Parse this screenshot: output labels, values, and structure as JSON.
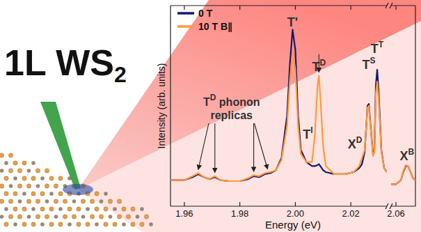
{
  "graphic": {
    "title": "1L WS",
    "title_subscript": "2"
  },
  "chart_data": [
    {
      "type": "line",
      "x_label": "Energy (eV)",
      "y_label": "Intensity (arb. units)",
      "xlim": [
        1.955,
        2.033
      ],
      "ylim": [
        0,
        1
      ],
      "xticks": [
        1.96,
        1.98,
        {
          "value": 2,
          "label": "2.00"
        },
        2.02
      ],
      "tick_labels": "x",
      "legend": "upper left",
      "x": [
        1.955,
        1.96,
        1.963,
        1.965,
        1.967,
        1.969,
        1.971,
        1.973,
        1.976,
        1.98,
        1.983,
        1.985,
        1.987,
        1.989,
        1.991,
        1.993,
        1.995,
        1.997,
        1.998,
        1.999,
        2,
        2.001,
        2.002,
        2.004,
        2.006,
        2.007,
        2.008,
        2.0085,
        2.009,
        2.01,
        2.011,
        2.014,
        2.018,
        2.021,
        2.023,
        2.024,
        2.025,
        2.026,
        2.0265,
        2.027,
        2.028,
        2.0285,
        2.029,
        2.0295,
        2.03,
        2.031,
        2.032,
        2.033
      ],
      "series": [
        {
          "name": "0 T",
          "color": "#15186e",
          "values": [
            0.13,
            0.13,
            0.145,
            0.16,
            0.145,
            0.135,
            0.145,
            0.13,
            0.125,
            0.125,
            0.135,
            0.15,
            0.145,
            0.16,
            0.165,
            0.18,
            0.24,
            0.45,
            0.7,
            0.88,
            0.78,
            0.45,
            0.28,
            0.22,
            0.2,
            0.2,
            0.205,
            0.21,
            0.2,
            0.18,
            0.17,
            0.16,
            0.16,
            0.17,
            0.19,
            0.21,
            0.27,
            0.5,
            0.51,
            0.42,
            0.26,
            0.28,
            0.6,
            0.68,
            0.58,
            0.28,
            0.19,
            0.17
          ]
        },
        {
          "name": "10 T B∥",
          "color": "#ff9a3c",
          "values": [
            0.13,
            0.13,
            0.15,
            0.165,
            0.145,
            0.135,
            0.15,
            0.13,
            0.125,
            0.125,
            0.14,
            0.155,
            0.15,
            0.165,
            0.17,
            0.18,
            0.23,
            0.4,
            0.62,
            0.77,
            0.68,
            0.4,
            0.26,
            0.22,
            0.22,
            0.35,
            0.6,
            0.65,
            0.55,
            0.3,
            0.2,
            0.16,
            0.16,
            0.17,
            0.2,
            0.24,
            0.28,
            0.49,
            0.5,
            0.41,
            0.25,
            0.27,
            0.56,
            0.62,
            0.54,
            0.27,
            0.19,
            0.17
          ]
        }
      ],
      "annotations": [
        {
          "text": "T'",
          "x": 1.999
        },
        {
          "text": "T",
          "sup": "D",
          "x": 2.0085
        },
        {
          "text": "T",
          "sup": "I",
          "x": 2.0045
        },
        {
          "text": "X",
          "sup": "D",
          "x": 2.0215
        },
        {
          "text": "T",
          "sup": "S",
          "x": 2.0265
        },
        {
          "text": "T",
          "sup": "T",
          "x": 2.0295
        },
        {
          "text": "T",
          "sup": "D",
          "after": " phonon",
          "line2": "replicas",
          "x": 1.977,
          "y": 0.5,
          "arrows": [
            1.965,
            1.971,
            1.985,
            1.99
          ]
        },
        {
          "arrows": [
            2.0085
          ]
        }
      ]
    },
    {
      "type": "line",
      "xlim": [
        2.058,
        2.068
      ],
      "ylim": [
        0,
        1
      ],
      "xticks": [
        2.06
      ],
      "tick_labels": "x",
      "x": [
        2.058,
        2.06,
        2.062,
        2.063,
        2.064,
        2.065,
        2.066,
        2.067,
        2.068
      ],
      "series": [
        {
          "color": "#15186e",
          "values": [
            0.11,
            0.11,
            0.13,
            0.17,
            0.2,
            0.2,
            0.17,
            0.14,
            0.13
          ]
        },
        {
          "color": "#ff9a3c",
          "values": [
            0.11,
            0.11,
            0.13,
            0.175,
            0.205,
            0.2,
            0.17,
            0.14,
            0.13
          ]
        }
      ],
      "annotations": [
        {
          "text": "X",
          "sup": "B",
          "x": 2.0645
        }
      ]
    }
  ]
}
